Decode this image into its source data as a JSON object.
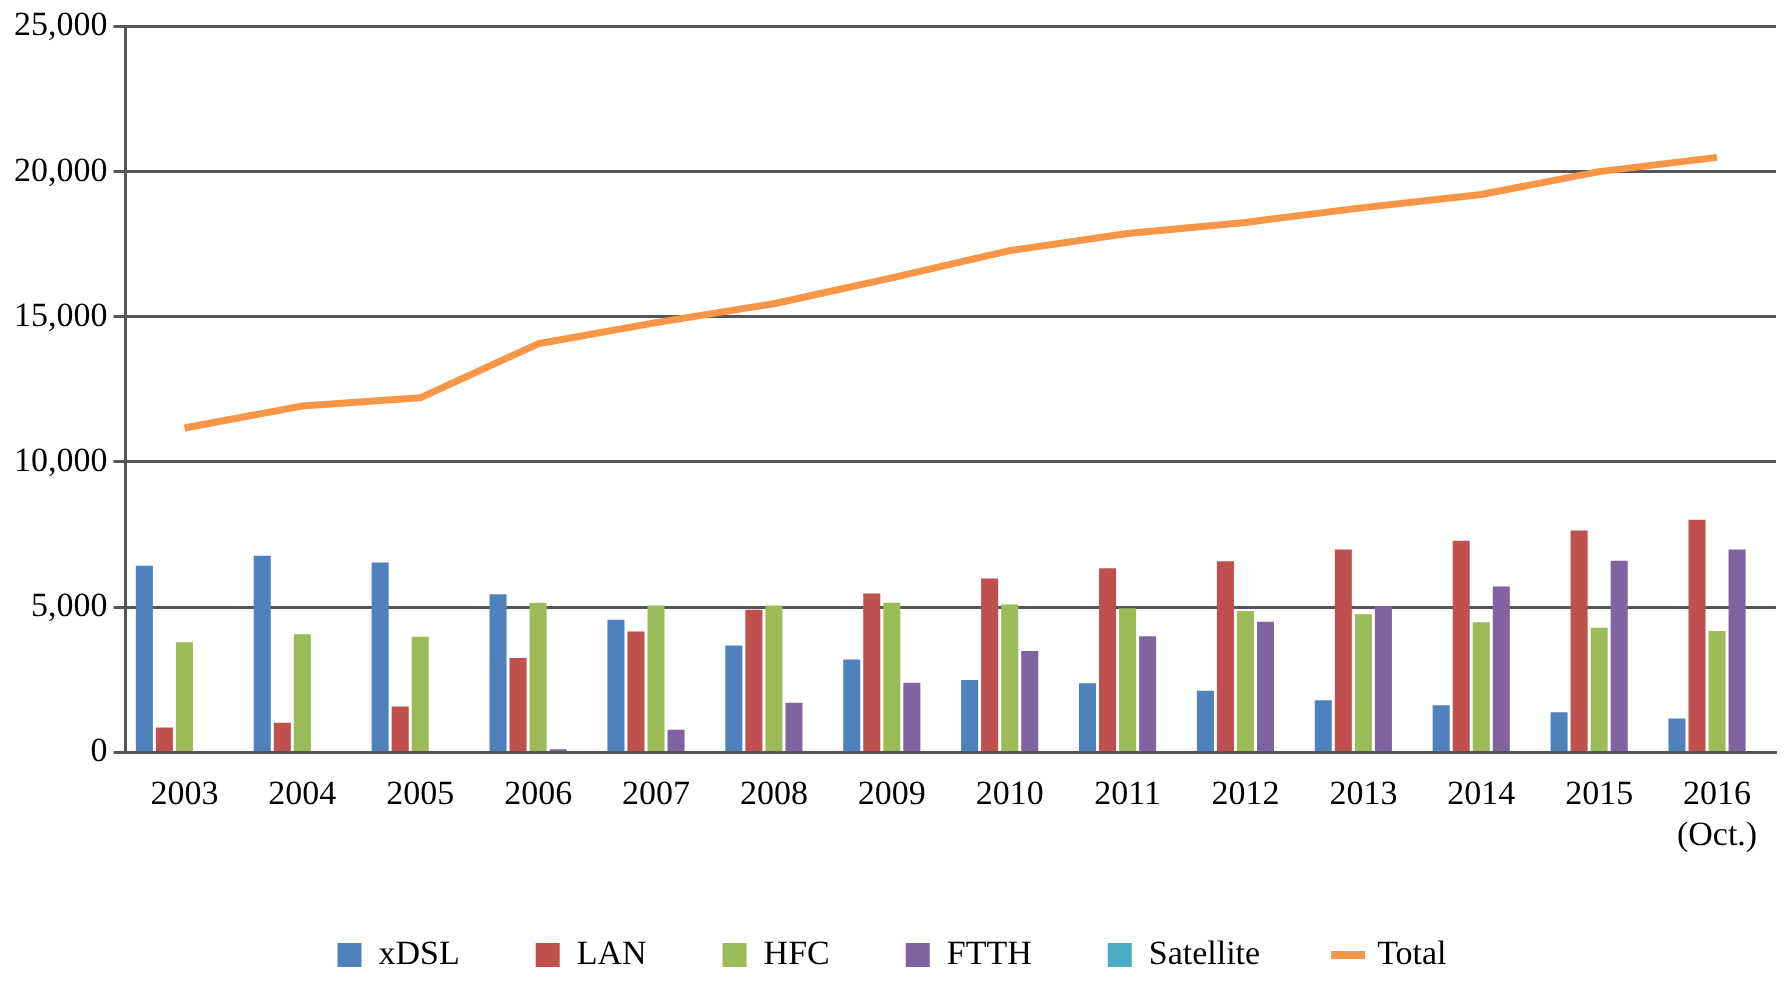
{
  "chart_data": {
    "type": "bar",
    "categories": [
      "2003",
      "2004",
      "2005",
      "2006",
      "2007",
      "2008",
      "2009",
      "2010",
      "2011",
      "2012",
      "2013",
      "2014",
      "2015",
      "2016\n(Oct.)"
    ],
    "series": [
      {
        "name": "xDSL",
        "color": "#4f81bd",
        "values": [
          6430,
          6770,
          6540,
          5450,
          4570,
          3680,
          3200,
          2490,
          2380,
          2120,
          1800,
          1620,
          1380,
          1170
        ]
      },
      {
        "name": "LAN",
        "color": "#c0504d",
        "values": [
          860,
          1020,
          1580,
          3250,
          4160,
          4910,
          5470,
          5990,
          6340,
          6580,
          6990,
          7290,
          7640,
          8010
        ]
      },
      {
        "name": "HFC",
        "color": "#9bbb59",
        "values": [
          3790,
          4070,
          3980,
          5150,
          5060,
          5060,
          5150,
          5090,
          4960,
          4870,
          4760,
          4480,
          4290,
          4180
        ]
      },
      {
        "name": "FTTH",
        "color": "#8064a2",
        "values": [
          0,
          0,
          0,
          110,
          780,
          1710,
          2400,
          3490,
          4000,
          4500,
          5040,
          5710,
          6600,
          6990
        ]
      },
      {
        "name": "Satellite",
        "color": "#4bacc6",
        "values": [
          0,
          0,
          0,
          0,
          0,
          0,
          0,
          0,
          0,
          0,
          0,
          0,
          0,
          0
        ]
      },
      {
        "name": "Total",
        "type": "line",
        "color": "#f79646",
        "values": [
          11170,
          11930,
          12210,
          14070,
          14800,
          15450,
          16340,
          17280,
          17870,
          18250,
          18760,
          19210,
          20000,
          20490
        ]
      }
    ],
    "ylim": [
      0,
      25000
    ],
    "yticks": [
      0,
      {
        "value": 5000,
        "label": "5,000"
      },
      {
        "value": 10000,
        "label": "10,000"
      },
      {
        "value": 15000,
        "label": "15,000"
      },
      {
        "value": 20000,
        "label": "20,000"
      },
      {
        "value": 25000,
        "label": "25,000"
      }
    ],
    "grid": "y",
    "legend": "bottom",
    "marker": "none"
  }
}
